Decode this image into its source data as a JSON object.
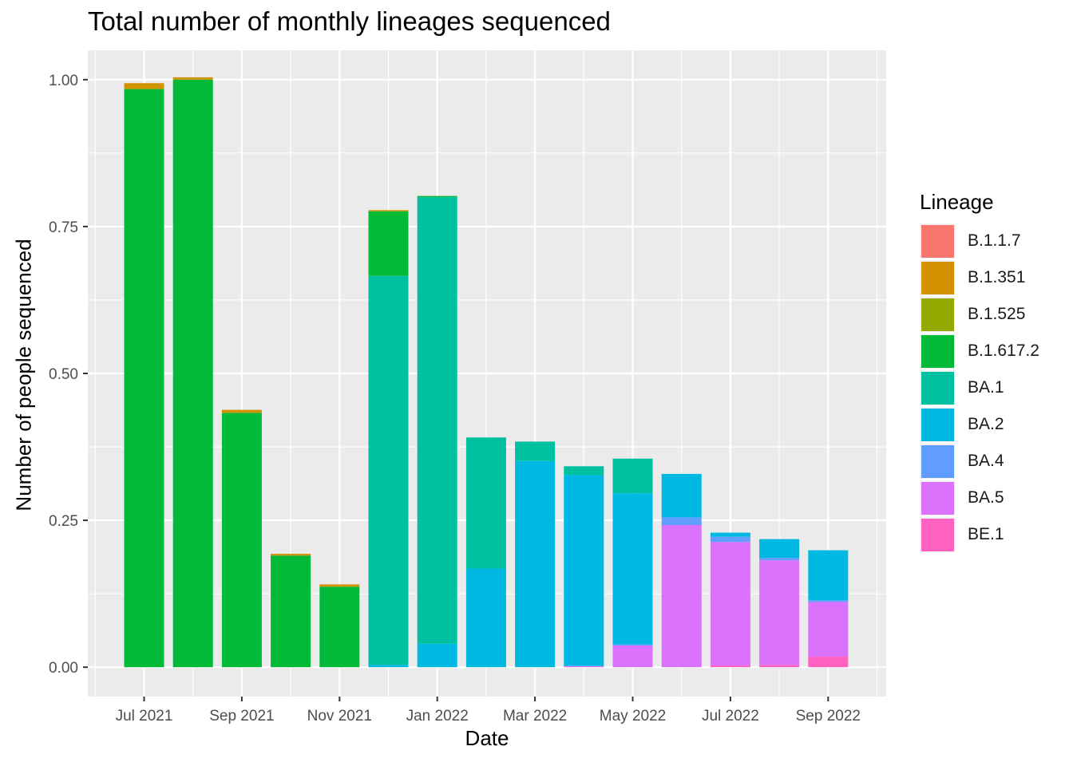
{
  "chart_data": {
    "type": "bar",
    "stacked": true,
    "title": "Total number of monthly lineages sequenced",
    "xlabel": "Date",
    "ylabel": "Number of people sequenced",
    "ylim": [
      -0.05,
      1.05
    ],
    "y_ticks": [
      "0.00",
      "0.25",
      "0.50",
      "0.75",
      "1.00"
    ],
    "x_ticks": [
      "Jul 2021",
      "Sep 2021",
      "Nov 2021",
      "Jan 2022",
      "Mar 2022",
      "May 2022",
      "Jul 2022",
      "Sep 2022"
    ],
    "grid": true,
    "legend_position": "right",
    "legend_title": "Lineage",
    "categories": [
      "Jul 2021",
      "Aug 2021",
      "Sep 2021",
      "Oct 2021",
      "Nov 2021",
      "Dec 2021",
      "Jan 2022",
      "Feb 2022",
      "Mar 2022",
      "Apr 2022",
      "May 2022",
      "Jun 2022",
      "Jul 2022",
      "Aug 2022",
      "Sep 2022"
    ],
    "series": [
      {
        "name": "B.1.1.7",
        "color": "#F8766D",
        "values": [
          0,
          0,
          0,
          0,
          0,
          0,
          0,
          0,
          0,
          0,
          0,
          0,
          0,
          0,
          0
        ]
      },
      {
        "name": "B.1.351",
        "color": "#D39200",
        "values": [
          0.01,
          0.004,
          0.005,
          0.003,
          0.004,
          0.002,
          0,
          0,
          0,
          0,
          0,
          0,
          0,
          0,
          0
        ]
      },
      {
        "name": "B.1.525",
        "color": "#93AA00",
        "values": [
          0,
          0,
          0,
          0,
          0,
          0,
          0,
          0,
          0,
          0,
          0,
          0,
          0,
          0,
          0
        ]
      },
      {
        "name": "B.1.617.2",
        "color": "#00BA38",
        "values": [
          0.984,
          1.0,
          0.433,
          0.19,
          0.137,
          0.11,
          0.002,
          0,
          0,
          0,
          0,
          0,
          0,
          0,
          0
        ]
      },
      {
        "name": "BA.1",
        "color": "#00C19F",
        "values": [
          0,
          0,
          0,
          0,
          0,
          0.662,
          0.76,
          0.223,
          0.033,
          0.015,
          0.059,
          0,
          0,
          0,
          0
        ]
      },
      {
        "name": "BA.2",
        "color": "#00B9E3",
        "values": [
          0,
          0,
          0,
          0,
          0,
          0.004,
          0.04,
          0.168,
          0.351,
          0.325,
          0.257,
          0.074,
          0.007,
          0.032,
          0.085
        ]
      },
      {
        "name": "BA.4",
        "color": "#619CFF",
        "values": [
          0,
          0,
          0,
          0,
          0,
          0,
          0,
          0,
          0,
          0,
          0.002,
          0.013,
          0.009,
          0.004,
          0.003
        ]
      },
      {
        "name": "BA.5",
        "color": "#DB72FB",
        "values": [
          0,
          0,
          0,
          0,
          0,
          0,
          0,
          0,
          0,
          0.002,
          0.037,
          0.242,
          0.21,
          0.178,
          0.093
        ]
      },
      {
        "name": "BE.1",
        "color": "#FF61C3",
        "values": [
          0,
          0,
          0,
          0,
          0,
          0,
          0,
          0,
          0,
          0,
          0,
          0,
          0.003,
          0.004,
          0.018
        ]
      }
    ]
  }
}
